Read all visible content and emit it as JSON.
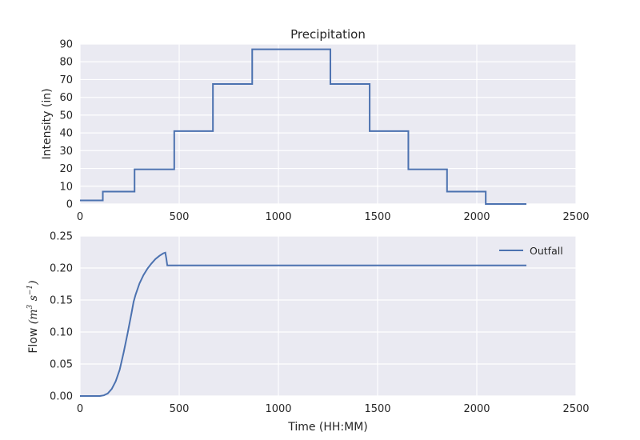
{
  "figure": {
    "background": "#ffffff",
    "axes_background": "#eaeaf2",
    "grid_color": "#ffffff",
    "line_color": "#4c72b0"
  },
  "chart_data": [
    {
      "type": "line",
      "title": "Precipitation",
      "xlabel": "",
      "ylabel": "Intensity (in)",
      "xlim": [
        0,
        2500
      ],
      "ylim": [
        0,
        90
      ],
      "xticks": [
        0,
        500,
        1000,
        1500,
        2000,
        2500
      ],
      "xtick_labels": [
        "0",
        "500",
        "1000",
        "1500",
        "2000",
        "2500"
      ],
      "yticks": [
        0,
        10,
        20,
        30,
        40,
        50,
        60,
        70,
        80,
        90
      ],
      "ytick_labels": [
        "0",
        "10",
        "20",
        "30",
        "40",
        "50",
        "60",
        "70",
        "80",
        "90"
      ],
      "grid": true,
      "legend": null,
      "series": [
        {
          "style": "step",
          "x": [
            0,
            115,
            115,
            275,
            275,
            475,
            475,
            670,
            670,
            868,
            868,
            1262,
            1262,
            1460,
            1460,
            1655,
            1655,
            1850,
            1850,
            2045,
            2045,
            2250
          ],
          "y": [
            2,
            2,
            7,
            7,
            19.5,
            19.5,
            41,
            41,
            67.5,
            67.5,
            87,
            87,
            67.5,
            67.5,
            41,
            41,
            19.5,
            19.5,
            7,
            7,
            0,
            0
          ]
        }
      ]
    },
    {
      "type": "line",
      "title": "",
      "xlabel": "Time (HH:MM)",
      "ylabel": "Flow ",
      "ylabel_math": "(m",
      "ylabel_sup1": "3",
      "ylabel_math2": " s",
      "ylabel_sup2": "−1",
      "ylabel_close": ")",
      "xlim": [
        0,
        2500
      ],
      "ylim": [
        0,
        0.25
      ],
      "xticks": [
        0,
        500,
        1000,
        1500,
        2000,
        2500
      ],
      "xtick_labels": [
        "0",
        "500",
        "1000",
        "1500",
        "2000",
        "2500"
      ],
      "yticks": [
        0,
        0.05,
        0.1,
        0.15,
        0.2,
        0.25
      ],
      "ytick_labels": [
        "0.00",
        "0.05",
        "0.10",
        "0.15",
        "0.20",
        "0.25"
      ],
      "grid": true,
      "legend": "top-right",
      "series": [
        {
          "name": "Outfall",
          "x": [
            0,
            100,
            120,
            140,
            160,
            180,
            200,
            220,
            240,
            260,
            270,
            280,
            300,
            320,
            340,
            360,
            380,
            400,
            420,
            430,
            435,
            440,
            500,
            1000,
            1500,
            2000,
            2250
          ],
          "y": [
            0,
            0,
            0.001,
            0.004,
            0.011,
            0.023,
            0.041,
            0.068,
            0.098,
            0.13,
            0.147,
            0.158,
            0.176,
            0.189,
            0.199,
            0.207,
            0.214,
            0.219,
            0.223,
            0.224,
            0.215,
            0.204,
            0.204,
            0.204,
            0.204,
            0.204,
            0.204
          ]
        }
      ]
    }
  ]
}
